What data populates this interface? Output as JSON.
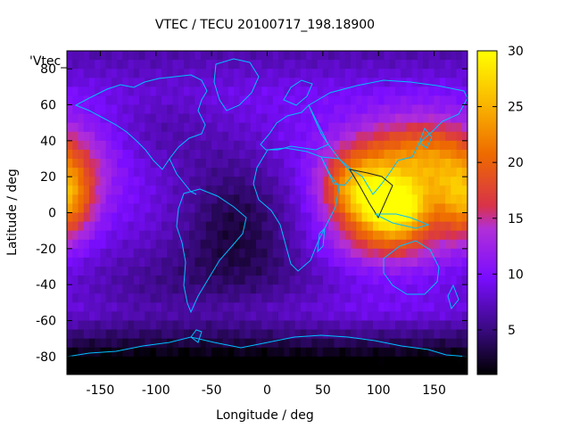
{
  "chart_data": {
    "type": "heatmap",
    "title": "VTEC / TECU 20100717_198.18900",
    "xlabel": "Longitude / deg",
    "ylabel": "Latitude / deg",
    "series_label": "'Vtec_",
    "xlim": [
      -180,
      180
    ],
    "ylim": [
      -90,
      90
    ],
    "x_ticks": [
      -150,
      -100,
      -50,
      0,
      50,
      100,
      150
    ],
    "y_ticks": [
      -80,
      -60,
      -40,
      -20,
      0,
      20,
      40,
      60,
      80
    ],
    "colorbar": {
      "range": [
        1,
        30
      ],
      "ticks": [
        5,
        10,
        15,
        20,
        25,
        30
      ]
    },
    "palette": [
      "#000000",
      "#3a0a82",
      "#7a0dff",
      "#b12fd8",
      "#d8324a",
      "#ee6a00",
      "#fab800",
      "#ffff00"
    ],
    "grid": false,
    "legend": "none",
    "features": [
      {
        "name": "dayside maximum (Asia / Indian Ocean)",
        "lon": 110,
        "lat": 2,
        "vtec": 29
      },
      {
        "name": "dayside maximum (west Pacific)",
        "lon": 175,
        "lat": 5,
        "vtec": 24
      },
      {
        "name": "eastern Pacific maximum",
        "lon": -168,
        "lat": 10,
        "vtec": 24
      },
      {
        "name": "South Atlantic minimum",
        "lon": -30,
        "lat": -5,
        "vtec": 3
      },
      {
        "name": "Antarctic low",
        "lon": 0,
        "lat": -85,
        "vtec": 1
      }
    ]
  }
}
